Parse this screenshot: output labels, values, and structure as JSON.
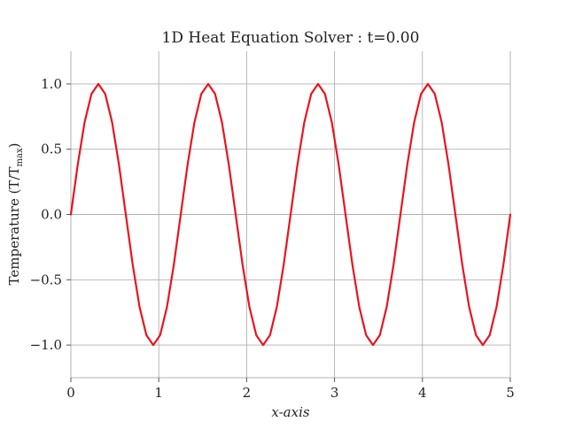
{
  "chart_data": {
    "type": "line",
    "title": "1D Heat Equation Solver : t=0.00",
    "xlabel": "x-axis",
    "ylabel": "Temperature (T/T",
    "ylabel_sub": "max",
    "ylabel_suffix": ")",
    "xlim": [
      0,
      5
    ],
    "ylim": [
      -1.25,
      1.25
    ],
    "xticks": [
      0,
      1,
      2,
      3,
      4,
      5
    ],
    "xtick_labels": [
      "0",
      "1",
      "2",
      "3",
      "4",
      "5"
    ],
    "yticks": [
      1.0,
      0.5,
      0.0,
      -0.5,
      -1.0
    ],
    "ytick_labels": [
      "1.0",
      "0.5",
      "0.0",
      "−0.5",
      "−1.0"
    ],
    "grid": true,
    "series": [
      {
        "color": "#e8141e",
        "x": [
          0.0,
          0.0781,
          0.1562,
          0.2344,
          0.3125,
          0.3906,
          0.4688,
          0.5469,
          0.625,
          0.7031,
          0.7812,
          0.8594,
          0.9375,
          1.0156,
          1.0938,
          1.1719,
          1.25,
          1.3281,
          1.4062,
          1.4844,
          1.5625,
          1.6406,
          1.7188,
          1.7969,
          1.875,
          1.9531,
          2.0312,
          2.1094,
          2.1875,
          2.2656,
          2.3438,
          2.4219,
          2.5,
          2.5781,
          2.6562,
          2.7344,
          2.8125,
          2.8906,
          2.9688,
          3.0469,
          3.125,
          3.2031,
          3.2812,
          3.3594,
          3.4375,
          3.5156,
          3.5938,
          3.6719,
          3.75,
          3.8281,
          3.9062,
          3.9844,
          4.0625,
          4.1406,
          4.2188,
          4.2969,
          4.375,
          4.4531,
          4.5312,
          4.6094,
          4.6875,
          4.7656,
          4.8438,
          4.9219,
          5.0
        ],
        "y": [
          0.0,
          0.3827,
          0.7071,
          0.9239,
          1.0,
          0.9239,
          0.7071,
          0.3827,
          0.0,
          -0.3827,
          -0.7071,
          -0.9239,
          -1.0,
          -0.9239,
          -0.7071,
          -0.3827,
          0.0,
          0.3827,
          0.7071,
          0.9239,
          1.0,
          0.9239,
          0.7071,
          0.3827,
          0.0,
          -0.3827,
          -0.7071,
          -0.9239,
          -1.0,
          -0.9239,
          -0.7071,
          -0.3827,
          0.0,
          0.3827,
          0.7071,
          0.9239,
          1.0,
          0.9239,
          0.7071,
          0.3827,
          0.0,
          -0.3827,
          -0.7071,
          -0.9239,
          -1.0,
          -0.9239,
          -0.7071,
          -0.3827,
          0.0,
          0.3827,
          0.7071,
          0.9239,
          1.0,
          0.9239,
          0.7071,
          0.3827,
          0.0,
          -0.3827,
          -0.7071,
          -0.9239,
          -1.0,
          -0.9239,
          -0.7071,
          -0.3827,
          0.0
        ]
      }
    ]
  }
}
